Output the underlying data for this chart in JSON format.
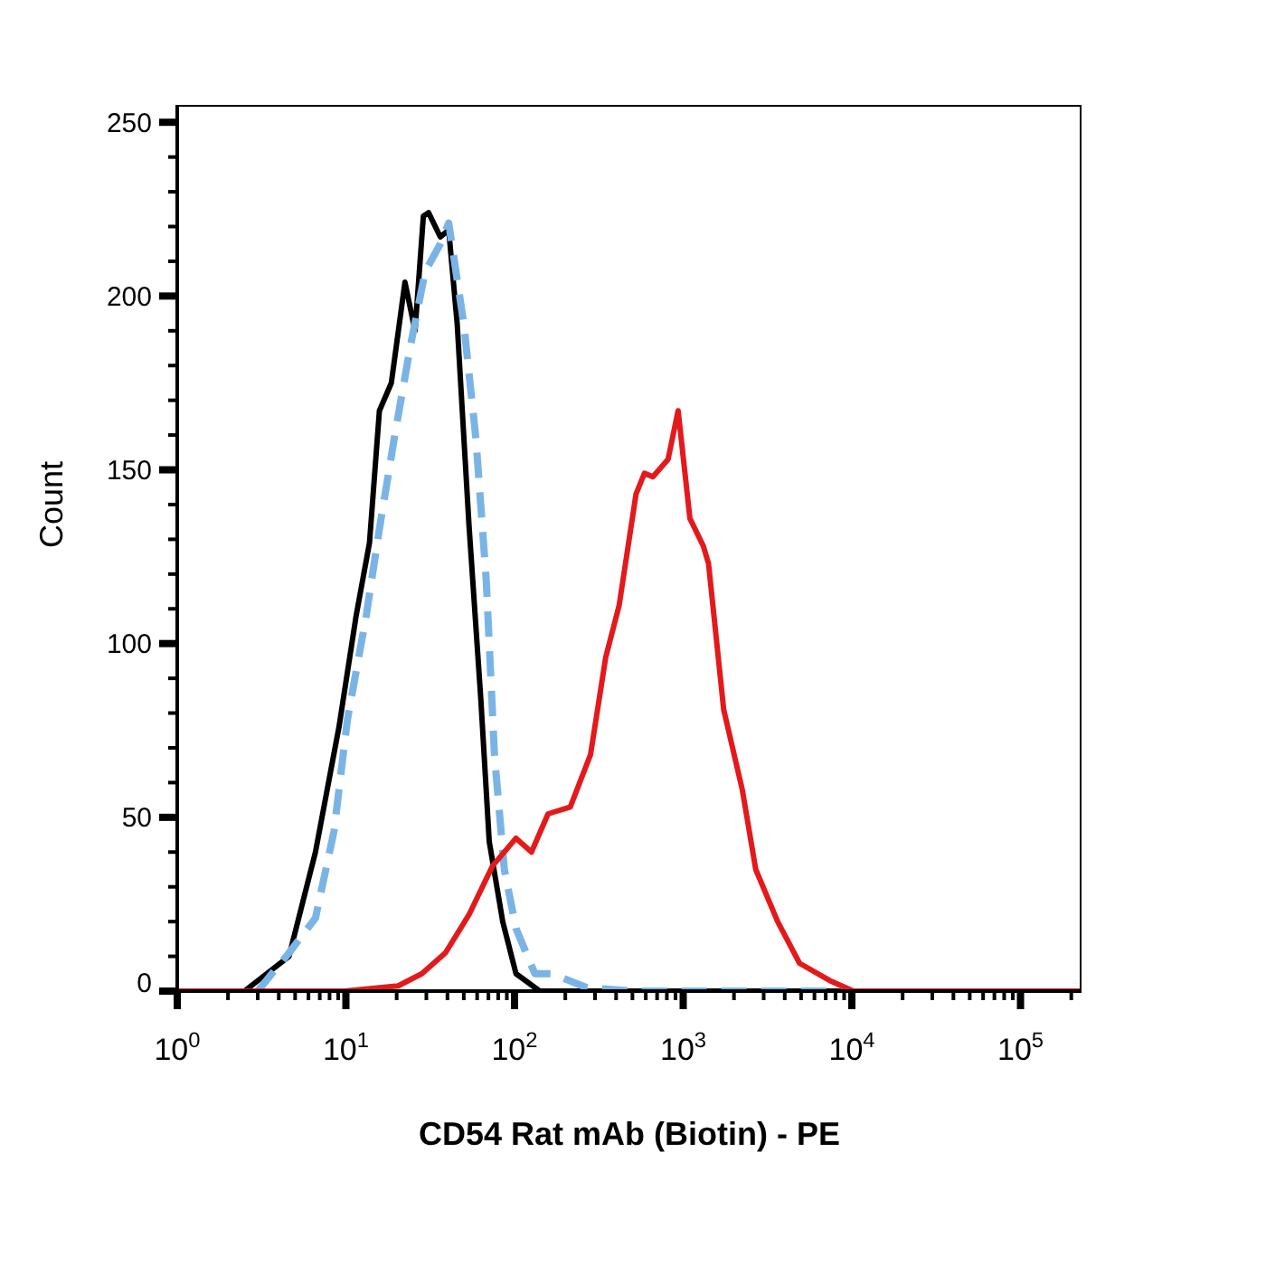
{
  "chart_data": {
    "type": "line",
    "xlabel": "CD54 Rat mAb (Biotin) - PE",
    "ylabel": "Count",
    "log": "x",
    "marker": "none",
    "grid": false,
    "legend": false,
    "xlim": [
      1,
      230000
    ],
    "xticks": [
      {
        "value": 1,
        "label": "10$^{0}$"
      },
      {
        "value": 2,
        "label": null
      },
      {
        "value": 3,
        "label": null
      },
      {
        "value": 4,
        "label": null
      },
      {
        "value": 5,
        "label": null
      },
      {
        "value": 6,
        "label": null
      },
      {
        "value": 7,
        "label": null
      },
      {
        "value": 8,
        "label": null
      },
      {
        "value": 9,
        "label": null
      },
      {
        "value": 10,
        "label": "10$^{1}$"
      },
      {
        "value": 20,
        "label": null
      },
      {
        "value": 30,
        "label": null
      },
      {
        "value": 40,
        "label": null
      },
      {
        "value": 50,
        "label": null
      },
      {
        "value": 60,
        "label": null
      },
      {
        "value": 70,
        "label": null
      },
      {
        "value": 80,
        "label": null
      },
      {
        "value": 90,
        "label": null
      },
      {
        "value": 100,
        "label": "10$^{2}$"
      },
      {
        "value": 200,
        "label": null
      },
      {
        "value": 300,
        "label": null
      },
      {
        "value": 400,
        "label": null
      },
      {
        "value": 500,
        "label": null
      },
      {
        "value": 600,
        "label": null
      },
      {
        "value": 700,
        "label": null
      },
      {
        "value": 800,
        "label": null
      },
      {
        "value": 900,
        "label": null
      },
      {
        "value": 1000,
        "label": "10$^{3}$"
      },
      {
        "value": 2000,
        "label": null
      },
      {
        "value": 3000,
        "label": null
      },
      {
        "value": 4000,
        "label": null
      },
      {
        "value": 5000,
        "label": null
      },
      {
        "value": 6000,
        "label": null
      },
      {
        "value": 7000,
        "label": null
      },
      {
        "value": 8000,
        "label": null
      },
      {
        "value": 9000,
        "label": null
      },
      {
        "value": 10000,
        "label": "10$^{4}$"
      },
      {
        "value": 20000,
        "label": null
      },
      {
        "value": 30000,
        "label": null
      },
      {
        "value": 40000,
        "label": null
      },
      {
        "value": 50000,
        "label": null
      },
      {
        "value": 60000,
        "label": null
      },
      {
        "value": 70000,
        "label": null
      },
      {
        "value": 80000,
        "label": null
      },
      {
        "value": 90000,
        "label": null
      },
      {
        "value": 100000,
        "label": "10$^{5}$"
      },
      {
        "value": 200000,
        "label": null
      }
    ],
    "ylim": [
      0,
      255
    ],
    "yticks": [
      0,
      {
        "value": 10,
        "label": null
      },
      {
        "value": 20,
        "label": null
      },
      {
        "value": 30,
        "label": null
      },
      {
        "value": 40,
        "label": null
      },
      50,
      {
        "value": 60,
        "label": null
      },
      {
        "value": 70,
        "label": null
      },
      {
        "value": 80,
        "label": null
      },
      {
        "value": 90,
        "label": null
      },
      100,
      {
        "value": 110,
        "label": null
      },
      {
        "value": 120,
        "label": null
      },
      {
        "value": 130,
        "label": null
      },
      {
        "value": 140,
        "label": null
      },
      150,
      {
        "value": 160,
        "label": null
      },
      {
        "value": 170,
        "label": null
      },
      {
        "value": 180,
        "label": null
      },
      {
        "value": 190,
        "label": null
      },
      200,
      {
        "value": 210,
        "label": null
      },
      {
        "value": 220,
        "label": null
      },
      {
        "value": 230,
        "label": null
      },
      {
        "value": 240,
        "label": null
      },
      250
    ],
    "series": [
      {
        "color": "#000000",
        "line_style": "solid",
        "x": [
          2.5,
          4.6,
          6.6,
          9.1,
          11.5,
          13.8,
          15.8,
          18.6,
          22.4,
          25.7,
          28.8,
          30.9,
          36.3,
          40.7,
          45.7,
          53.7,
          63.1,
          70.8,
          85.1,
          102,
          141,
          9800
        ],
        "values": [
          0,
          10,
          40,
          76,
          108,
          129,
          167,
          175,
          204,
          190,
          223,
          224,
          217,
          219,
          192,
          134,
          84,
          43,
          20,
          5,
          0,
          0
        ]
      },
      {
        "color": "#7ab4e6",
        "line_style": "dashed",
        "x": [
          3.0,
          4.6,
          6.6,
          8.5,
          10.2,
          13.2,
          15.8,
          19.5,
          24,
          29.5,
          36.3,
          40.7,
          50,
          59,
          68,
          76,
          87,
          102,
          132,
          166,
          269,
          500,
          9800
        ],
        "values": [
          0,
          11,
          21,
          46,
          78,
          108,
          133,
          160,
          185,
          207,
          215,
          221,
          192,
          159,
          118,
          68,
          35,
          18,
          5,
          5,
          1,
          0,
          0
        ]
      },
      {
        "color": "#e31a1c",
        "line_style": "solid",
        "x": [
          1,
          9.8,
          20.4,
          28.2,
          38.9,
          53.7,
          74,
          102,
          126,
          158,
          214,
          282,
          347,
          417,
          525,
          589,
          661,
          813,
          933,
          1096,
          1318,
          1413,
          1738,
          2239,
          2692,
          3631,
          4898,
          7413,
          10233,
          230000
        ],
        "values": [
          0,
          0,
          1.5,
          5,
          11,
          22,
          36,
          44,
          40,
          51,
          53,
          68,
          96,
          111,
          143,
          149,
          148,
          153,
          167,
          136,
          128,
          123,
          81,
          58,
          35,
          20,
          8,
          3,
          0,
          0
        ]
      }
    ]
  }
}
